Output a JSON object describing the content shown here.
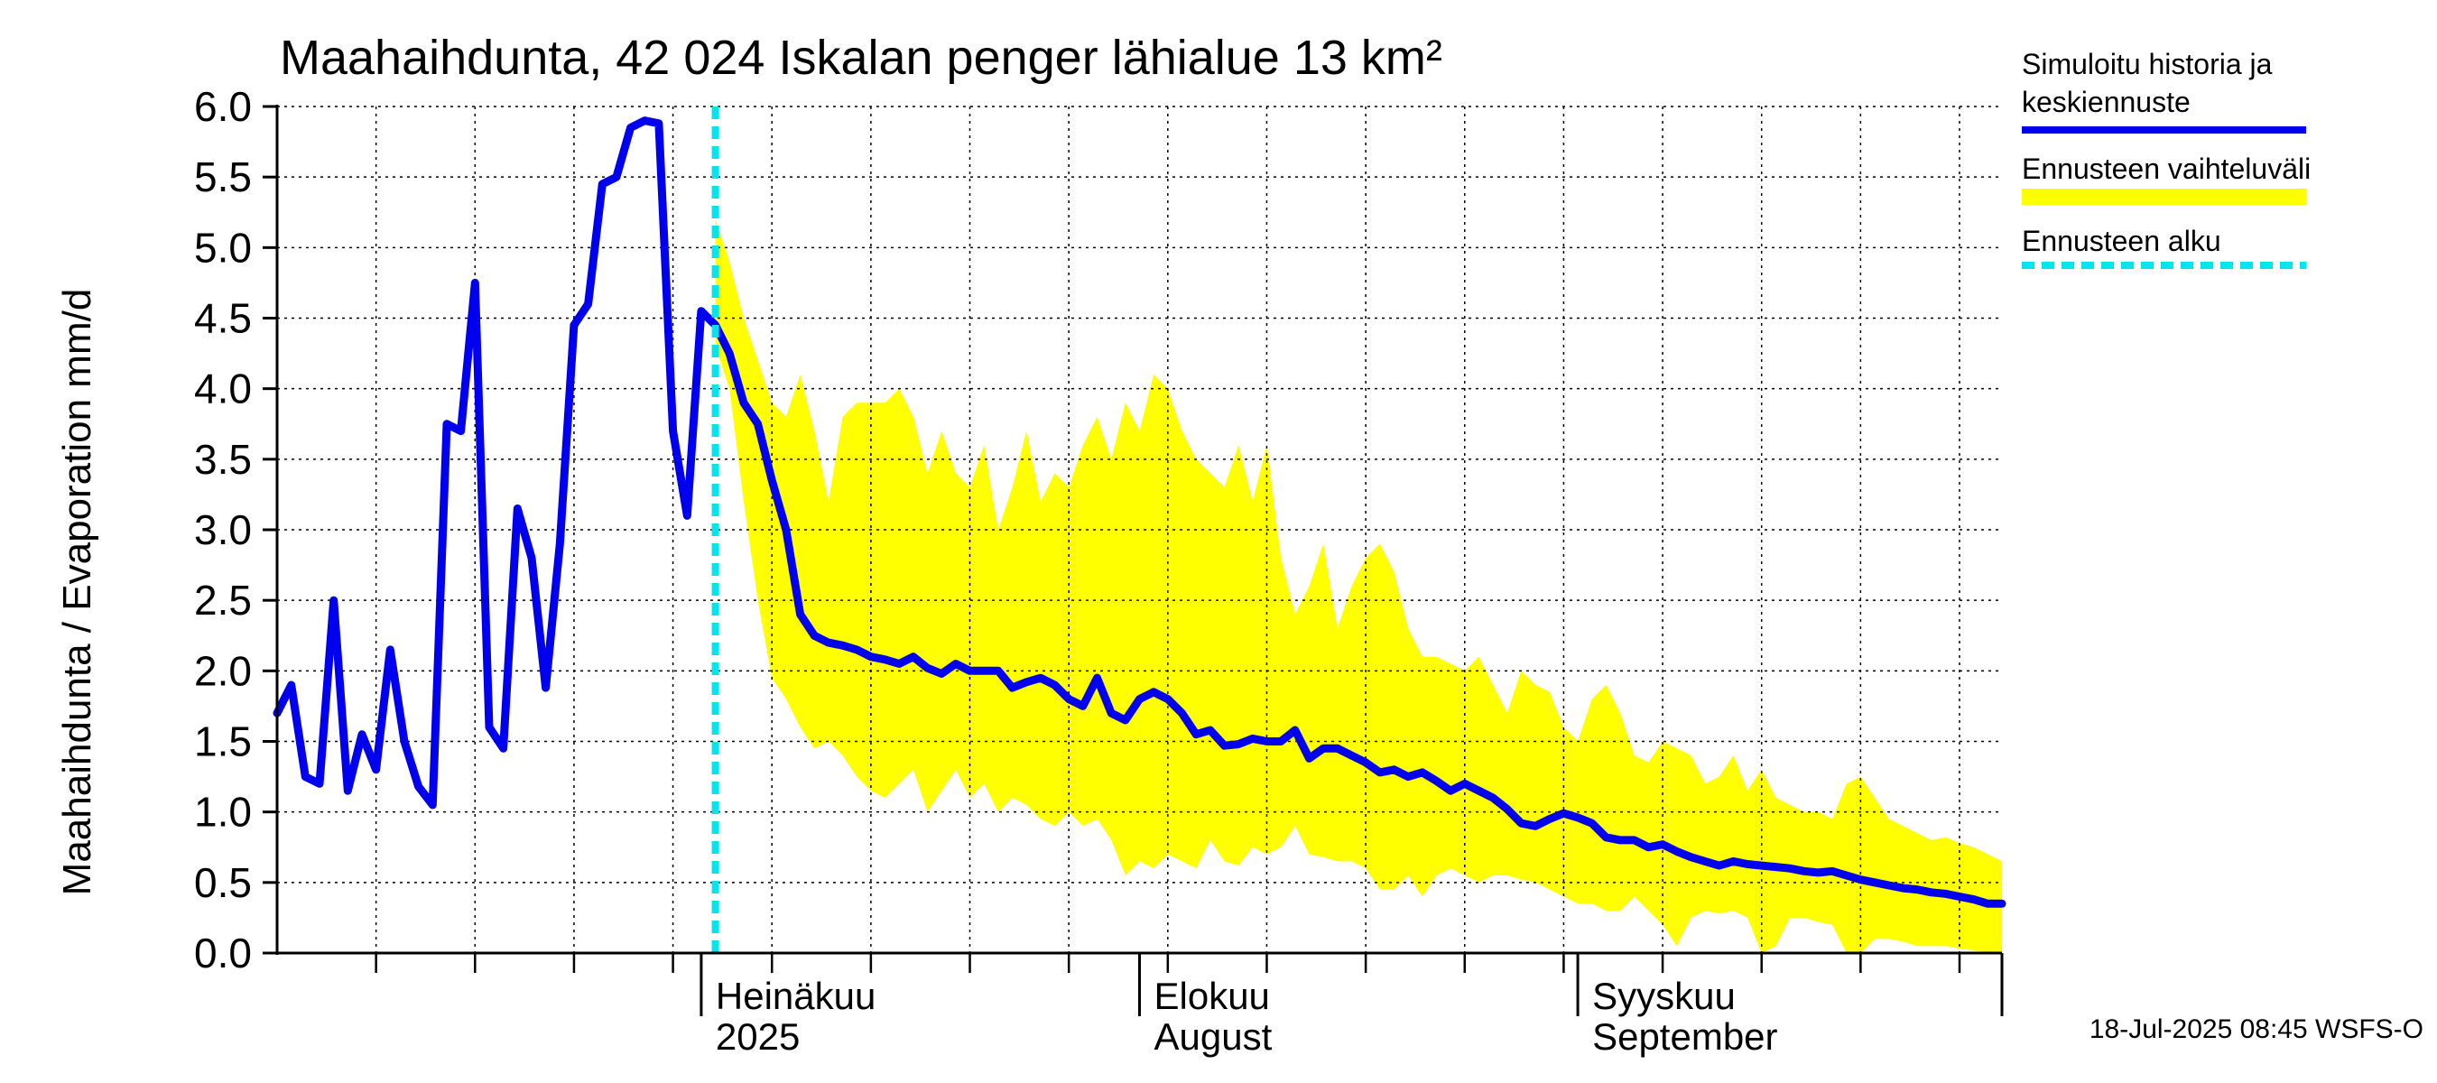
{
  "chart_data": {
    "type": "line",
    "title": "Maahaihdunta, 42 024 Iskalan penger lähialue 13 km²",
    "ylabel": "Maahaihdunta / Evaporation   mm/d",
    "ylim": [
      0,
      6
    ],
    "yticks": [
      "0.0",
      "0.5",
      "1.0",
      "1.5",
      "2.0",
      "2.5",
      "3.0",
      "3.5",
      "4.0",
      "4.5",
      "5.0",
      "5.5",
      "6.0"
    ],
    "grid": true,
    "x_start": "2025-06-01",
    "x_end": "2025-10-01",
    "month_labels": [
      {
        "date": "2025-07-01",
        "line1": "Heinäkuu",
        "line2": "2025"
      },
      {
        "date": "2025-08-01",
        "line1": "Elokuu",
        "line2": "August"
      },
      {
        "date": "2025-09-01",
        "line1": "Syyskuu",
        "line2": "September"
      }
    ],
    "forecast_start": "2025-07-01T00:00:00",
    "forecast_start_day": 31,
    "legend": [
      {
        "line1": "Simuloitu historia ja",
        "line2": "keskiennuste",
        "color": "#0000ee",
        "style": "solid"
      },
      {
        "line1": "Ennusteen vaihteluväli",
        "line2": "",
        "color": "#ffff00",
        "style": "band"
      },
      {
        "line1": "Ennusteen alku",
        "line2": "",
        "color": "#00e5ee",
        "style": "dashed"
      }
    ],
    "footer": "18-Jul-2025 08:45 WSFS-O",
    "history": {
      "name": "Simuloitu historia ja keskiennuste",
      "days": [
        0,
        1,
        2,
        3,
        4,
        5,
        6,
        7,
        8,
        9,
        10,
        11,
        12,
        13,
        14,
        15,
        16,
        17,
        18,
        19,
        20,
        21,
        22,
        23,
        24,
        25,
        26,
        27,
        28,
        29,
        30,
        31,
        32,
        33,
        34,
        35,
        36,
        37,
        38,
        39,
        40,
        41,
        42,
        43,
        44,
        45,
        46,
        47,
        48,
        49,
        50,
        51,
        52,
        53,
        54,
        55,
        56,
        57,
        58,
        59,
        60,
        61,
        62,
        63,
        64,
        65,
        66,
        67,
        68,
        69,
        70,
        71,
        72,
        73,
        74,
        75,
        76,
        77,
        78,
        79,
        80,
        81,
        82,
        83,
        84,
        85,
        86,
        87,
        88,
        89,
        90,
        91,
        92,
        93,
        94,
        95,
        96,
        97,
        98,
        99,
        100,
        101,
        102,
        103,
        104,
        105,
        106,
        107,
        108,
        109,
        110,
        111,
        112,
        113,
        114,
        115,
        116,
        117,
        118,
        119,
        120,
        121,
        122
      ],
      "values": [
        1.7,
        1.9,
        1.25,
        1.2,
        2.5,
        1.15,
        1.55,
        1.3,
        2.15,
        1.5,
        1.18,
        1.05,
        3.75,
        3.7,
        4.75,
        1.6,
        1.45,
        3.15,
        2.8,
        1.88,
        2.9,
        4.45,
        4.6,
        5.45,
        5.5,
        5.85,
        5.9,
        5.88,
        3.7,
        3.1,
        4.55,
        4.45,
        4.25,
        3.9,
        3.75,
        3.35,
        3.0,
        2.4,
        2.25,
        2.2,
        2.18,
        2.15,
        2.1,
        2.08,
        2.05,
        2.1,
        2.02,
        1.98,
        2.05,
        2.0,
        2.0,
        2.0,
        1.88,
        1.92,
        1.95,
        1.9,
        1.8,
        1.75,
        1.95,
        1.7,
        1.65,
        1.8,
        1.85,
        1.8,
        1.7,
        1.55,
        1.58,
        1.47,
        1.48,
        1.52,
        1.5,
        1.5,
        1.58,
        1.38,
        1.45,
        1.45,
        1.4,
        1.35,
        1.28,
        1.3,
        1.25,
        1.28,
        1.22,
        1.15,
        1.2,
        1.15,
        1.1,
        1.02,
        0.92,
        0.9,
        0.95,
        0.99,
        0.96,
        0.92,
        0.82,
        0.8,
        0.8,
        0.75,
        0.77,
        0.72,
        0.68,
        0.65,
        0.62,
        0.65,
        0.63,
        0.62,
        0.61,
        0.6,
        0.58,
        0.57,
        0.58,
        0.55,
        0.52,
        0.5,
        0.48,
        0.46,
        0.45,
        0.43,
        0.42,
        0.4,
        0.38,
        0.35,
        0.35
      ]
    },
    "forecast_band": {
      "name": "Ennusteen vaihteluväli",
      "days": [
        31,
        32,
        33,
        34,
        35,
        36,
        37,
        38,
        39,
        40,
        41,
        42,
        43,
        44,
        45,
        46,
        47,
        48,
        49,
        50,
        51,
        52,
        53,
        54,
        55,
        56,
        57,
        58,
        59,
        60,
        61,
        62,
        63,
        64,
        65,
        66,
        67,
        68,
        69,
        70,
        71,
        72,
        73,
        74,
        75,
        76,
        77,
        78,
        79,
        80,
        81,
        82,
        83,
        84,
        85,
        86,
        87,
        88,
        89,
        90,
        91,
        92,
        93,
        94,
        95,
        96,
        97,
        98,
        99,
        100,
        101,
        102,
        103,
        104,
        105,
        106,
        107,
        108,
        109,
        110,
        111,
        112,
        113,
        114,
        115,
        116,
        117,
        118,
        119,
        120,
        121,
        122
      ],
      "upper": [
        5.2,
        4.9,
        4.5,
        4.2,
        3.9,
        3.8,
        4.1,
        3.7,
        3.2,
        3.8,
        3.9,
        3.9,
        3.9,
        4.0,
        3.8,
        3.4,
        3.7,
        3.4,
        3.3,
        3.6,
        3.0,
        3.3,
        3.7,
        3.2,
        3.4,
        3.3,
        3.6,
        3.8,
        3.5,
        3.9,
        3.7,
        4.1,
        4.0,
        3.7,
        3.5,
        3.4,
        3.3,
        3.6,
        3.2,
        3.6,
        2.8,
        2.4,
        2.6,
        2.9,
        2.3,
        2.6,
        2.8,
        2.9,
        2.7,
        2.3,
        2.1,
        2.1,
        2.05,
        2.0,
        2.1,
        1.9,
        1.7,
        2.0,
        1.9,
        1.85,
        1.6,
        1.5,
        1.8,
        1.9,
        1.7,
        1.4,
        1.35,
        1.5,
        1.45,
        1.4,
        1.2,
        1.25,
        1.4,
        1.15,
        1.3,
        1.1,
        1.05,
        1.0,
        1.0,
        0.95,
        1.2,
        1.25,
        1.1,
        0.95,
        0.9,
        0.85,
        0.8,
        0.82,
        0.78,
        0.75,
        0.7,
        0.65
      ],
      "lower": [
        4.3,
        4.0,
        3.2,
        2.5,
        1.95,
        1.8,
        1.6,
        1.45,
        1.5,
        1.4,
        1.25,
        1.15,
        1.1,
        1.2,
        1.3,
        1.0,
        1.15,
        1.3,
        1.1,
        1.2,
        1.0,
        1.1,
        1.05,
        0.95,
        0.9,
        1.0,
        0.9,
        0.95,
        0.8,
        0.55,
        0.65,
        0.6,
        0.7,
        0.65,
        0.6,
        0.8,
        0.65,
        0.62,
        0.75,
        0.7,
        0.75,
        0.9,
        0.7,
        0.68,
        0.65,
        0.65,
        0.6,
        0.45,
        0.45,
        0.55,
        0.4,
        0.55,
        0.6,
        0.55,
        0.5,
        0.55,
        0.55,
        0.52,
        0.5,
        0.45,
        0.4,
        0.35,
        0.35,
        0.3,
        0.3,
        0.4,
        0.3,
        0.2,
        0.05,
        0.25,
        0.3,
        0.28,
        0.3,
        0.25,
        0.0,
        0.05,
        0.25,
        0.25,
        0.22,
        0.2,
        0.0,
        0.0,
        0.1,
        0.1,
        0.08,
        0.05,
        0.05,
        0.05,
        0.03,
        0.02,
        0.0,
        0.0
      ]
    }
  }
}
